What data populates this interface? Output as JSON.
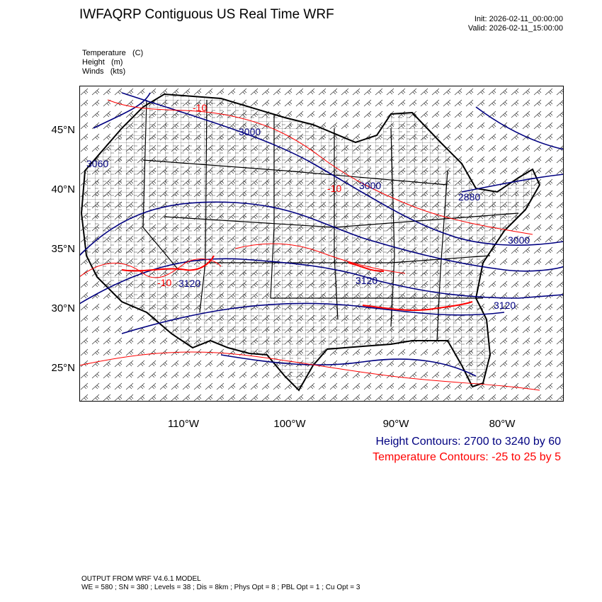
{
  "header": {
    "title": "IWFAQRP Contiguous US Real Time WRF",
    "init": "Init: 2026-02-11_00:00:00",
    "valid": "Valid: 2026-02-11_15:00:00"
  },
  "fields": [
    {
      "name": "Temperature",
      "unit": "(C)"
    },
    {
      "name": "Height",
      "unit": "(m)"
    },
    {
      "name": "Winds",
      "unit": "(kts)"
    }
  ],
  "map": {
    "lat_labels": [
      "45°N",
      "40°N",
      "35°N",
      "30°N",
      "25°N"
    ],
    "lon_labels": [
      "110°W",
      "100°W",
      "90°W",
      "80°W"
    ],
    "height_contour_labels": [
      "3000",
      "3060",
      "3000",
      "3120",
      "3120",
      "3120",
      "2880",
      "3000"
    ],
    "temperature_contour_labels": [
      "-10",
      "-10",
      "-10"
    ],
    "colors": {
      "height": "#000080",
      "temperature": "#ff0000",
      "borders": "#000000",
      "counties": "#000000",
      "wind_barbs": "#000000"
    }
  },
  "legend": {
    "height": "Height Contours: 2700 to 3240 by 60",
    "temperature": "Temperature Contours: -25 to 25 by 5"
  },
  "footer": {
    "line1": "OUTPUT FROM WRF V4.6.1 MODEL",
    "line2": "WE = 580 ; SN = 380 ; Levels = 38 ; Dis = 8km ; Phys Opt = 8 ; PBL Opt = 1 ; Cu Opt = 3"
  }
}
